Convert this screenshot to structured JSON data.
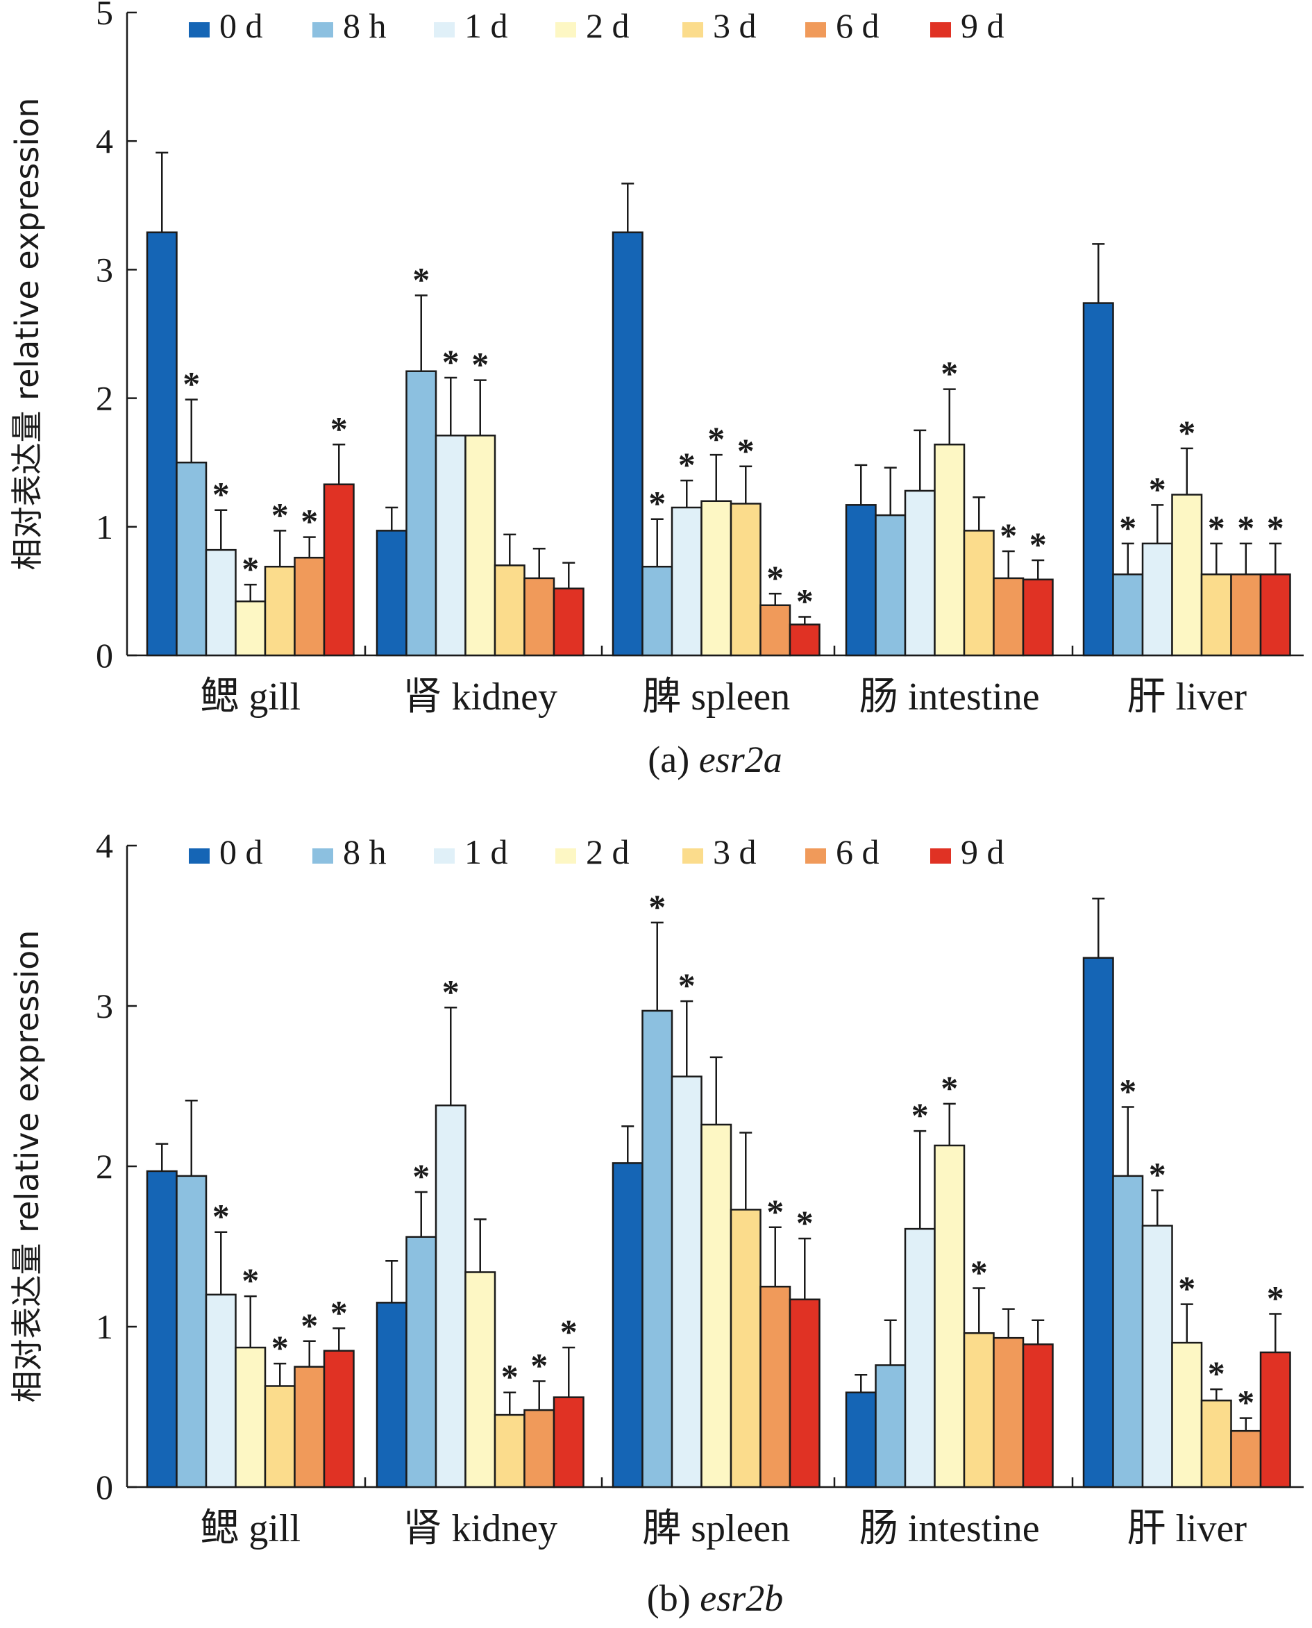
{
  "chart_data": [
    {
      "type": "bar",
      "caption_prefix": "(a) ",
      "caption_gene": "esr2a",
      "ylabel": "相对表达量 relative expression",
      "ylim": [
        0,
        5
      ],
      "yticks": [
        "0",
        "1",
        "2",
        "3",
        "4",
        "5"
      ],
      "categories": [
        "鳃 gill",
        "肾 kidney",
        "脾 spleen",
        "肠 intestine",
        "肝 liver"
      ],
      "legend_position": "top",
      "series": [
        {
          "name": "0 d",
          "color": "#1565b5",
          "values": [
            3.29,
            0.97,
            3.29,
            1.17,
            2.74
          ],
          "errors": [
            0.62,
            0.18,
            0.38,
            0.31,
            0.46
          ],
          "sig": [
            false,
            false,
            false,
            false,
            false
          ]
        },
        {
          "name": "8 h",
          "color": "#8cc0e0",
          "values": [
            1.5,
            2.21,
            0.69,
            1.09,
            0.63
          ],
          "errors": [
            0.49,
            0.59,
            0.37,
            0.37,
            0.24
          ],
          "sig": [
            true,
            true,
            true,
            false,
            true
          ]
        },
        {
          "name": "1 d",
          "color": "#e0f0f8",
          "values": [
            0.82,
            1.71,
            1.15,
            1.28,
            0.87
          ],
          "errors": [
            0.31,
            0.45,
            0.21,
            0.47,
            0.3
          ],
          "sig": [
            true,
            true,
            true,
            false,
            true
          ]
        },
        {
          "name": "2 d",
          "color": "#fdf7c4",
          "values": [
            0.42,
            1.71,
            1.2,
            1.64,
            1.25
          ],
          "errors": [
            0.13,
            0.43,
            0.36,
            0.43,
            0.36
          ],
          "sig": [
            true,
            true,
            true,
            true,
            true
          ]
        },
        {
          "name": "3 d",
          "color": "#fbdc8c",
          "values": [
            0.69,
            0.7,
            1.18,
            0.97,
            0.63
          ],
          "errors": [
            0.28,
            0.24,
            0.29,
            0.26,
            0.24
          ],
          "sig": [
            true,
            false,
            true,
            false,
            true
          ]
        },
        {
          "name": "6 d",
          "color": "#f09a5a",
          "values": [
            0.76,
            0.6,
            0.39,
            0.6,
            0.63
          ],
          "errors": [
            0.16,
            0.23,
            0.09,
            0.21,
            0.24
          ],
          "sig": [
            true,
            false,
            true,
            true,
            true
          ]
        },
        {
          "name": "9 d",
          "color": "#e03224",
          "values": [
            1.33,
            0.52,
            0.24,
            0.59,
            0.63
          ],
          "errors": [
            0.31,
            0.2,
            0.06,
            0.15,
            0.24
          ],
          "sig": [
            true,
            false,
            true,
            true,
            true
          ]
        }
      ]
    },
    {
      "type": "bar",
      "caption_prefix": "(b) ",
      "caption_gene": "esr2b",
      "ylabel": "相对表达量 relative expression",
      "ylim": [
        0,
        4
      ],
      "yticks": [
        "0",
        "1",
        "2",
        "3",
        "4"
      ],
      "categories": [
        "鳃 gill",
        "肾 kidney",
        "脾 spleen",
        "肠 intestine",
        "肝 liver"
      ],
      "legend_position": "top",
      "series": [
        {
          "name": "0 d",
          "color": "#1565b5",
          "values": [
            1.97,
            1.15,
            2.02,
            0.59,
            3.3
          ],
          "errors": [
            0.17,
            0.26,
            0.23,
            0.11,
            0.37
          ],
          "sig": [
            false,
            false,
            false,
            false,
            false
          ]
        },
        {
          "name": "8 h",
          "color": "#8cc0e0",
          "values": [
            1.94,
            1.56,
            2.97,
            0.76,
            1.94
          ],
          "errors": [
            0.47,
            0.28,
            0.55,
            0.28,
            0.43
          ],
          "sig": [
            false,
            true,
            true,
            false,
            true
          ]
        },
        {
          "name": "1 d",
          "color": "#e0f0f8",
          "values": [
            1.2,
            2.38,
            2.56,
            1.61,
            1.63
          ],
          "errors": [
            0.39,
            0.61,
            0.47,
            0.61,
            0.22
          ],
          "sig": [
            true,
            true,
            true,
            true,
            true
          ]
        },
        {
          "name": "2 d",
          "color": "#fdf7c4",
          "values": [
            0.87,
            1.34,
            2.26,
            2.13,
            0.9
          ],
          "errors": [
            0.32,
            0.33,
            0.42,
            0.26,
            0.24
          ],
          "sig": [
            true,
            false,
            false,
            true,
            true
          ]
        },
        {
          "name": "3 d",
          "color": "#fbdc8c",
          "values": [
            0.63,
            0.45,
            1.73,
            0.96,
            0.54
          ],
          "errors": [
            0.14,
            0.14,
            0.48,
            0.28,
            0.07
          ],
          "sig": [
            true,
            true,
            false,
            true,
            true
          ]
        },
        {
          "name": "6 d",
          "color": "#f09a5a",
          "values": [
            0.75,
            0.48,
            1.25,
            0.93,
            0.35
          ],
          "errors": [
            0.16,
            0.18,
            0.37,
            0.18,
            0.08
          ],
          "sig": [
            true,
            true,
            true,
            false,
            true
          ]
        },
        {
          "name": "9 d",
          "color": "#e03224",
          "values": [
            0.85,
            0.56,
            1.17,
            0.89,
            0.84
          ],
          "errors": [
            0.14,
            0.31,
            0.38,
            0.15,
            0.24
          ],
          "sig": [
            true,
            true,
            true,
            false,
            true
          ]
        }
      ]
    }
  ]
}
